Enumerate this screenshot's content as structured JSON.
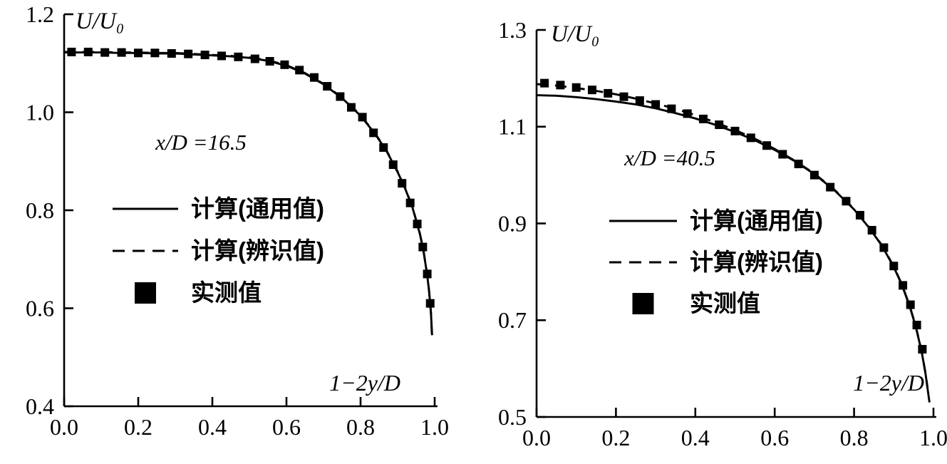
{
  "page": {
    "background": "#ffffff",
    "ink": "#000000"
  },
  "chart_data": [
    {
      "type": "line",
      "title": "",
      "ylabel": "U/U₀",
      "xlabel": "1−2y/D",
      "annotation": "x/D =16.5",
      "xlim": [
        0.0,
        1.0
      ],
      "ylim": [
        0.4,
        1.2
      ],
      "x_ticks": [
        0.0,
        0.2,
        0.4,
        0.6,
        0.8,
        1.0
      ],
      "y_ticks": [
        0.4,
        0.6,
        0.8,
        1.0,
        1.2
      ],
      "grid": false,
      "legend_position": "inside-center-left",
      "legend": [
        {
          "label": "计算(通用值)",
          "style": "solid-line"
        },
        {
          "label": "计算(辨识值)",
          "style": "dashed-line"
        },
        {
          "label": "实测值",
          "style": "filled-square"
        }
      ],
      "series": [
        {
          "name": "计算(通用值)",
          "style": "solid",
          "points": [
            [
              0,
              1.122
            ],
            [
              0.05,
              1.122
            ],
            [
              0.1,
              1.122
            ],
            [
              0.15,
              1.121
            ],
            [
              0.2,
              1.121
            ],
            [
              0.25,
              1.12
            ],
            [
              0.3,
              1.12
            ],
            [
              0.35,
              1.118
            ],
            [
              0.4,
              1.116
            ],
            [
              0.45,
              1.114
            ],
            [
              0.5,
              1.111
            ],
            [
              0.55,
              1.105
            ],
            [
              0.6,
              1.095
            ],
            [
              0.65,
              1.079
            ],
            [
              0.7,
              1.057
            ],
            [
              0.75,
              1.029
            ],
            [
              0.8,
              0.993
            ],
            [
              0.84,
              0.955
            ],
            [
              0.87,
              0.921
            ],
            [
              0.9,
              0.878
            ],
            [
              0.92,
              0.845
            ],
            [
              0.94,
              0.806
            ],
            [
              0.96,
              0.752
            ],
            [
              0.97,
              0.716
            ],
            [
              0.98,
              0.667
            ],
            [
              0.985,
              0.634
            ],
            [
              0.99,
              0.59
            ],
            [
              0.993,
              0.545
            ]
          ]
        },
        {
          "name": "计算(辨识值)",
          "style": "dashed",
          "points": [
            [
              0,
              1.123
            ],
            [
              0.05,
              1.123
            ],
            [
              0.1,
              1.123
            ],
            [
              0.15,
              1.122
            ],
            [
              0.2,
              1.122
            ],
            [
              0.25,
              1.121
            ],
            [
              0.3,
              1.121
            ],
            [
              0.35,
              1.119
            ],
            [
              0.4,
              1.117
            ],
            [
              0.45,
              1.115
            ],
            [
              0.5,
              1.112
            ],
            [
              0.55,
              1.106
            ],
            [
              0.6,
              1.096
            ],
            [
              0.65,
              1.08
            ],
            [
              0.7,
              1.058
            ],
            [
              0.75,
              1.03
            ],
            [
              0.8,
              0.994
            ],
            [
              0.84,
              0.956
            ],
            [
              0.87,
              0.922
            ],
            [
              0.9,
              0.879
            ],
            [
              0.92,
              0.846
            ],
            [
              0.94,
              0.807
            ],
            [
              0.96,
              0.753
            ],
            [
              0.97,
              0.717
            ],
            [
              0.98,
              0.668
            ],
            [
              0.985,
              0.635
            ],
            [
              0.99,
              0.591
            ],
            [
              0.993,
              0.535
            ]
          ]
        },
        {
          "name": "实测值",
          "style": "markers",
          "points": [
            [
              0.02,
              1.123
            ],
            [
              0.065,
              1.123
            ],
            [
              0.11,
              1.122
            ],
            [
              0.155,
              1.122
            ],
            [
              0.2,
              1.121
            ],
            [
              0.245,
              1.121
            ],
            [
              0.29,
              1.12
            ],
            [
              0.335,
              1.119
            ],
            [
              0.38,
              1.117
            ],
            [
              0.425,
              1.115
            ],
            [
              0.47,
              1.113
            ],
            [
              0.515,
              1.109
            ],
            [
              0.555,
              1.104
            ],
            [
              0.595,
              1.097
            ],
            [
              0.635,
              1.086
            ],
            [
              0.675,
              1.071
            ],
            [
              0.71,
              1.053
            ],
            [
              0.745,
              1.032
            ],
            [
              0.775,
              1.01
            ],
            [
              0.805,
              0.99
            ],
            [
              0.835,
              0.958
            ],
            [
              0.862,
              0.928
            ],
            [
              0.888,
              0.893
            ],
            [
              0.912,
              0.855
            ],
            [
              0.934,
              0.815
            ],
            [
              0.953,
              0.772
            ],
            [
              0.968,
              0.725
            ],
            [
              0.98,
              0.67
            ],
            [
              0.988,
              0.61
            ]
          ]
        }
      ]
    },
    {
      "type": "line",
      "title": "",
      "ylabel": "U/U₀",
      "xlabel": "1−2y/D",
      "annotation": "x/D =40.5",
      "xlim": [
        0.0,
        1.0
      ],
      "ylim": [
        0.5,
        1.3
      ],
      "x_ticks": [
        0.0,
        0.2,
        0.4,
        0.6,
        0.8,
        1.0
      ],
      "y_ticks": [
        0.5,
        0.7,
        0.9,
        1.1,
        1.3
      ],
      "grid": false,
      "legend_position": "inside-center-left",
      "legend": [
        {
          "label": "计算(通用值)",
          "style": "solid-line"
        },
        {
          "label": "计算(辨识值)",
          "style": "dashed-line"
        },
        {
          "label": "实测值",
          "style": "filled-square"
        }
      ],
      "series": [
        {
          "name": "计算(通用值)",
          "style": "solid",
          "points": [
            [
              0,
              1.165
            ],
            [
              0.05,
              1.164
            ],
            [
              0.1,
              1.161
            ],
            [
              0.15,
              1.157
            ],
            [
              0.2,
              1.152
            ],
            [
              0.25,
              1.146
            ],
            [
              0.3,
              1.138
            ],
            [
              0.35,
              1.128
            ],
            [
              0.4,
              1.117
            ],
            [
              0.45,
              1.104
            ],
            [
              0.5,
              1.089
            ],
            [
              0.55,
              1.072
            ],
            [
              0.6,
              1.052
            ],
            [
              0.65,
              1.029
            ],
            [
              0.7,
              1.002
            ],
            [
              0.75,
              0.969
            ],
            [
              0.8,
              0.929
            ],
            [
              0.84,
              0.889
            ],
            [
              0.87,
              0.854
            ],
            [
              0.9,
              0.81
            ],
            [
              0.92,
              0.774
            ],
            [
              0.94,
              0.729
            ],
            [
              0.955,
              0.688
            ],
            [
              0.97,
              0.636
            ],
            [
              0.98,
              0.589
            ],
            [
              0.985,
              0.56
            ],
            [
              0.99,
              0.53
            ]
          ]
        },
        {
          "name": "计算(辨识值)",
          "style": "dashed",
          "points": [
            [
              0,
              1.188
            ],
            [
              0.05,
              1.185
            ],
            [
              0.1,
              1.18
            ],
            [
              0.15,
              1.174
            ],
            [
              0.2,
              1.167
            ],
            [
              0.25,
              1.158
            ],
            [
              0.3,
              1.148
            ],
            [
              0.35,
              1.137
            ],
            [
              0.4,
              1.124
            ],
            [
              0.45,
              1.109
            ],
            [
              0.5,
              1.093
            ],
            [
              0.55,
              1.075
            ],
            [
              0.6,
              1.054
            ],
            [
              0.65,
              1.03
            ],
            [
              0.7,
              1.003
            ],
            [
              0.75,
              0.97
            ],
            [
              0.8,
              0.93
            ],
            [
              0.84,
              0.89
            ],
            [
              0.87,
              0.855
            ],
            [
              0.9,
              0.811
            ],
            [
              0.92,
              0.775
            ],
            [
              0.94,
              0.73
            ],
            [
              0.955,
              0.689
            ],
            [
              0.97,
              0.637
            ],
            [
              0.98,
              0.59
            ],
            [
              0.985,
              0.561
            ]
          ]
        },
        {
          "name": "实测值",
          "style": "markers",
          "points": [
            [
              0.02,
              1.19
            ],
            [
              0.06,
              1.186
            ],
            [
              0.1,
              1.181
            ],
            [
              0.14,
              1.176
            ],
            [
              0.18,
              1.169
            ],
            [
              0.22,
              1.162
            ],
            [
              0.26,
              1.154
            ],
            [
              0.3,
              1.146
            ],
            [
              0.34,
              1.137
            ],
            [
              0.38,
              1.127
            ],
            [
              0.42,
              1.116
            ],
            [
              0.46,
              1.104
            ],
            [
              0.5,
              1.091
            ],
            [
              0.54,
              1.077
            ],
            [
              0.58,
              1.061
            ],
            [
              0.62,
              1.043
            ],
            [
              0.66,
              1.023
            ],
            [
              0.7,
              1.0
            ],
            [
              0.74,
              0.975
            ],
            [
              0.78,
              0.946
            ],
            [
              0.815,
              0.917
            ],
            [
              0.845,
              0.886
            ],
            [
              0.875,
              0.85
            ],
            [
              0.9,
              0.812
            ],
            [
              0.923,
              0.772
            ],
            [
              0.942,
              0.732
            ],
            [
              0.958,
              0.69
            ],
            [
              0.972,
              0.64
            ]
          ]
        }
      ]
    }
  ]
}
